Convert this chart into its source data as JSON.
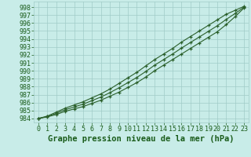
{
  "title": "Graphe pression niveau de la mer (hPa)",
  "xlabel_hours": [
    0,
    1,
    2,
    3,
    4,
    5,
    6,
    7,
    8,
    9,
    10,
    11,
    12,
    13,
    14,
    15,
    16,
    17,
    18,
    19,
    20,
    21,
    22,
    23
  ],
  "line_min": [
    984.0,
    984.2,
    984.5,
    984.9,
    985.2,
    985.5,
    985.9,
    986.3,
    986.8,
    987.3,
    987.9,
    988.5,
    989.2,
    990.0,
    990.7,
    991.4,
    992.1,
    992.8,
    993.5,
    994.2,
    994.9,
    995.8,
    996.8,
    997.9
  ],
  "line_max": [
    984.0,
    984.3,
    984.8,
    985.3,
    985.7,
    986.1,
    986.6,
    987.1,
    987.7,
    988.4,
    989.1,
    989.8,
    990.6,
    991.4,
    992.1,
    992.8,
    993.6,
    994.3,
    995.0,
    995.7,
    996.4,
    997.1,
    997.6,
    998.1
  ],
  "line_mean": [
    984.0,
    984.25,
    984.65,
    985.1,
    985.45,
    985.8,
    986.25,
    986.7,
    987.25,
    987.85,
    988.5,
    989.15,
    989.9,
    990.7,
    991.4,
    992.1,
    992.85,
    993.55,
    994.25,
    994.95,
    995.65,
    996.45,
    997.2,
    998.0
  ],
  "ylim": [
    983.5,
    998.7
  ],
  "xlim": [
    -0.5,
    23.5
  ],
  "yticks": [
    984,
    985,
    986,
    987,
    988,
    989,
    990,
    991,
    992,
    993,
    994,
    995,
    996,
    997,
    998
  ],
  "xticks": [
    0,
    1,
    2,
    3,
    4,
    5,
    6,
    7,
    8,
    9,
    10,
    11,
    12,
    13,
    14,
    15,
    16,
    17,
    18,
    19,
    20,
    21,
    22,
    23
  ],
  "line_color": "#2a5f2a",
  "bg_color": "#c8ece8",
  "grid_color": "#a0ccc8",
  "title_color": "#1a5c1a",
  "title_fontsize": 7.5,
  "tick_fontsize": 6.0,
  "marker": "+",
  "marker_size": 3.5
}
